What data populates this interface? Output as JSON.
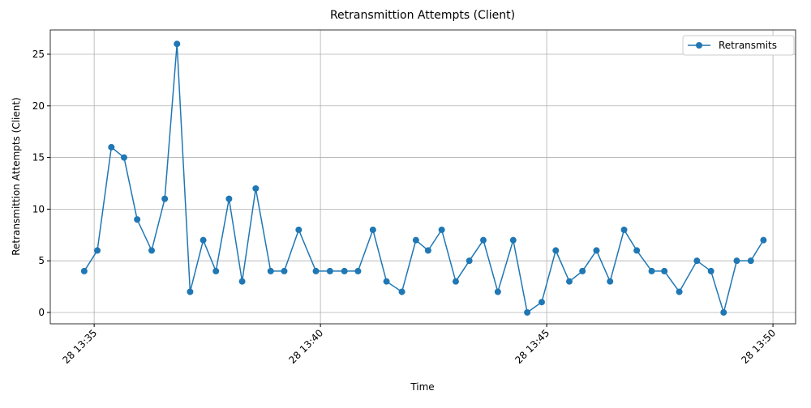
{
  "chart_data": {
    "type": "line",
    "title": "Retransmittion Attempts (Client)",
    "x_label": "Time",
    "y_label": "Retransmittion Attempts (Client)",
    "x": [
      34.78,
      35.07,
      35.38,
      35.66,
      35.95,
      36.27,
      36.56,
      36.83,
      37.12,
      37.41,
      37.69,
      37.98,
      38.27,
      38.57,
      38.9,
      39.2,
      39.52,
      39.9,
      40.21,
      40.53,
      40.83,
      41.16,
      41.46,
      41.8,
      42.11,
      42.38,
      42.68,
      42.99,
      43.29,
      43.6,
      43.92,
      44.26,
      44.57,
      44.89,
      45.2,
      45.5,
      45.79,
      46.1,
      46.4,
      46.71,
      46.99,
      47.32,
      47.6,
      47.93,
      48.32,
      48.63,
      48.91,
      49.2,
      49.51,
      49.79
    ],
    "series": [
      {
        "name": "Retransmits",
        "color": "#1f77b4",
        "marker": "o",
        "values": [
          4,
          6,
          16,
          15,
          9,
          6,
          11,
          26,
          2,
          7,
          4,
          11,
          3,
          12,
          4,
          4,
          8,
          4,
          4,
          4,
          4,
          8,
          3,
          2,
          7,
          6,
          8,
          3,
          5,
          7,
          2,
          7,
          0,
          1,
          6,
          3,
          4,
          6,
          3,
          8,
          6,
          4,
          4,
          2,
          5,
          4,
          0,
          5,
          5,
          7
        ]
      }
    ],
    "xlim": [
      34.03,
      50.5
    ],
    "xticks": [
      {
        "value": 35,
        "label": "28 13:35"
      },
      {
        "value": 40,
        "label": "28 13:40"
      },
      {
        "value": 45,
        "label": "28 13:45"
      },
      {
        "value": 50,
        "label": "28 13:50"
      }
    ],
    "ylim": [
      -1.1,
      27.35
    ],
    "yticks": [
      0,
      5,
      10,
      15,
      20,
      25
    ],
    "grid": true,
    "legend": "upper-right"
  }
}
